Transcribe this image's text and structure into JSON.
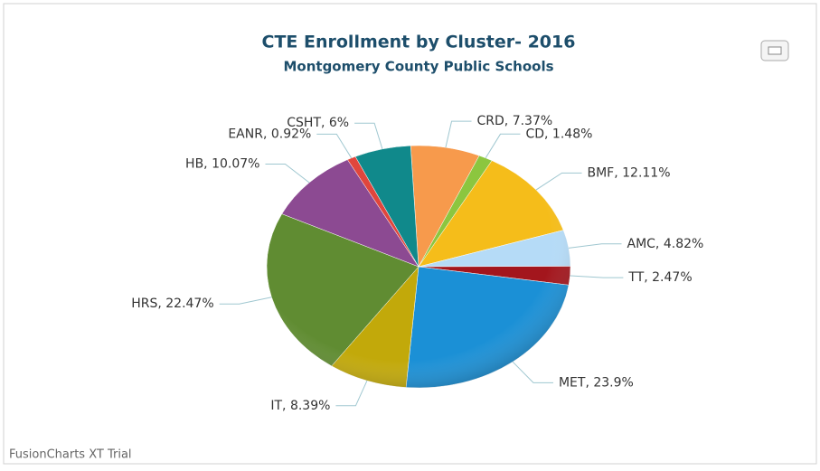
{
  "chart_data": {
    "type": "pie",
    "title": "CTE Enrollment by Cluster- 2016",
    "subtitle": "Montgomery County Public Schools",
    "watermark": "FusionCharts XT Trial",
    "values": [
      7.37,
      1.48,
      12.11,
      4.82,
      2.47,
      23.9,
      8.39,
      22.47,
      10.07,
      0.92,
      6
    ],
    "value_labels": [
      "CRD, 7.37%",
      "CD, 1.48%",
      "BMF, 12.11%",
      "AMC, 4.82%",
      "TT, 2.47%",
      "MET, 23.9%",
      "IT, 8.39%",
      "HRS, 22.47%",
      "HB, 10.07%",
      "EANR, 0.92%",
      "CSHT, 6%"
    ],
    "colors": [
      "#f79a4c",
      "#8cc63f",
      "#f5bd1a",
      "#b5dbf7",
      "#a3161d",
      "#1b90d6",
      "#c2a90a",
      "#608c32",
      "#8c4a92",
      "#e0463d",
      "#10898b"
    ]
  }
}
